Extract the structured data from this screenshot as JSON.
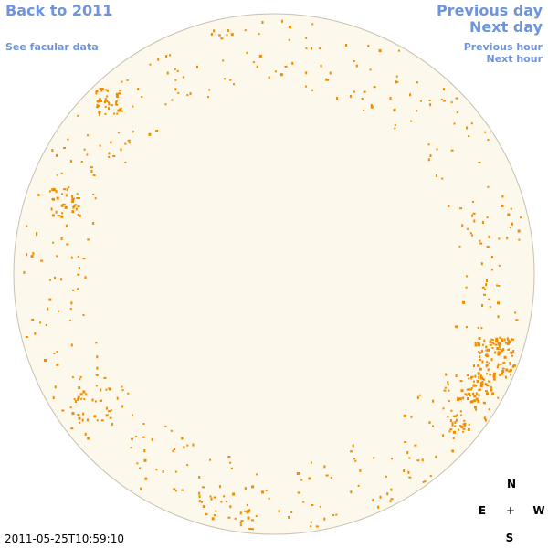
{
  "nav": {
    "back_label": "Back to 2011",
    "facular_label": "See facular data",
    "prev_day_label": "Previous day",
    "next_day_label": "Next day",
    "prev_hour_label": "Previous hour",
    "next_hour_label": "Next hour"
  },
  "timestamp": "2011-05-25T10:59:10",
  "compass": {
    "north": "N",
    "south": "S",
    "east": "E",
    "west": "W",
    "center": "+"
  },
  "colors": {
    "disk_fill": "#fdf8ec",
    "disk_border": "#c8c0b0",
    "spot": "#f08c00",
    "link": "#6d94dc"
  }
}
